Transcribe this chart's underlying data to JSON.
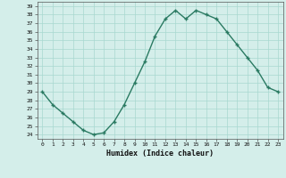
{
  "x": [
    0,
    1,
    2,
    3,
    4,
    5,
    6,
    7,
    8,
    9,
    10,
    11,
    12,
    13,
    14,
    15,
    16,
    17,
    18,
    19,
    20,
    21,
    22,
    23
  ],
  "y": [
    29.0,
    27.5,
    26.5,
    25.5,
    24.5,
    24.0,
    24.2,
    25.5,
    27.5,
    30.0,
    32.5,
    35.5,
    37.5,
    38.5,
    37.5,
    38.5,
    38.0,
    37.5,
    36.0,
    34.5,
    33.0,
    31.5,
    29.5,
    29.0
  ],
  "xlabel": "Humidex (Indice chaleur)",
  "line_color": "#2a7a62",
  "marker_color": "#2a7a62",
  "bg_color": "#d4eeea",
  "grid_color": "#a8d8d0",
  "ylim": [
    23.5,
    39.5
  ],
  "xlim": [
    -0.5,
    23.5
  ],
  "yticks": [
    24,
    25,
    26,
    27,
    28,
    29,
    30,
    31,
    32,
    33,
    34,
    35,
    36,
    37,
    38,
    39
  ],
  "xticks": [
    0,
    1,
    2,
    3,
    4,
    5,
    6,
    7,
    8,
    9,
    10,
    11,
    12,
    13,
    14,
    15,
    16,
    17,
    18,
    19,
    20,
    21,
    22,
    23
  ]
}
